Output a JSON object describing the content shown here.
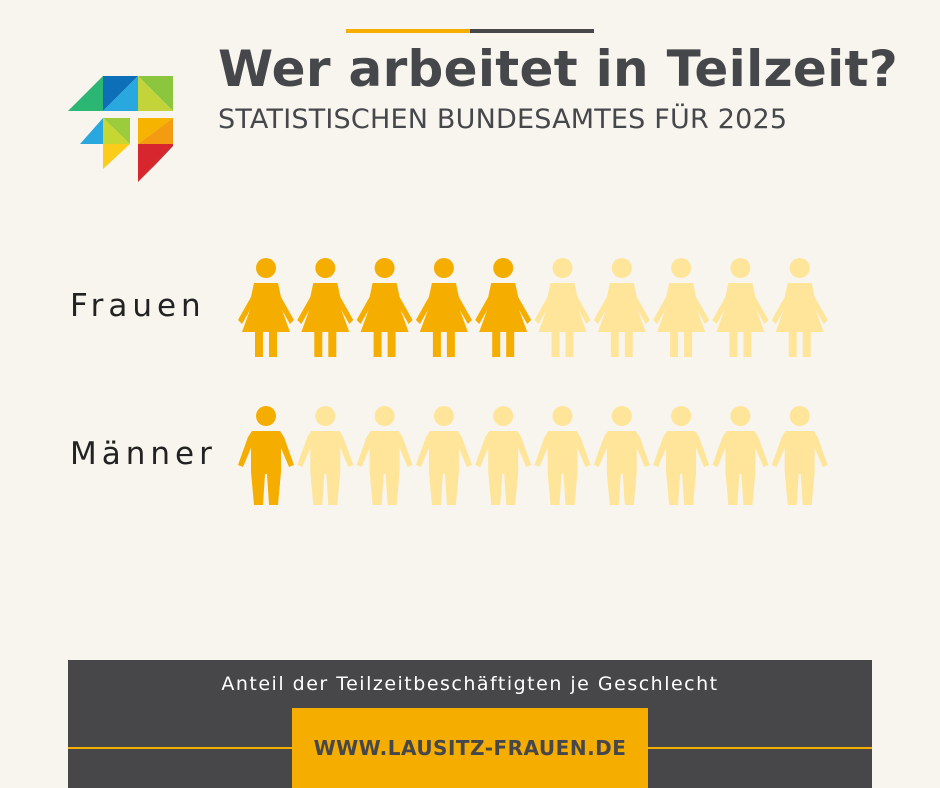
{
  "title": "Wer arbeitet in Teilzeit?",
  "subtitle": "STATISTISCHEN BUNDESAMTES FÜR 2025",
  "colors": {
    "background": "#f8f5ef",
    "dark": "#474749",
    "highlight": "#f5ad00",
    "muted": "#ffe59a",
    "text": "#46474b"
  },
  "icons": {
    "female": "female-person-icon",
    "male": "male-person-icon",
    "logo": "lausitz-frauen-logo-icon"
  },
  "chart_data": {
    "type": "pictogram",
    "icons_per_row": 10,
    "series": [
      {
        "name": "Frauen",
        "highlighted": 5,
        "total": 10,
        "icon": "female-person-icon"
      },
      {
        "name": "Männer",
        "highlighted": 1,
        "total": 10,
        "icon": "male-person-icon"
      }
    ]
  },
  "footer": {
    "caption": "Anteil der Teilzeitbeschäftigten je Geschlecht",
    "url": "WWW.LAUSITZ-FRAUEN.DE"
  }
}
